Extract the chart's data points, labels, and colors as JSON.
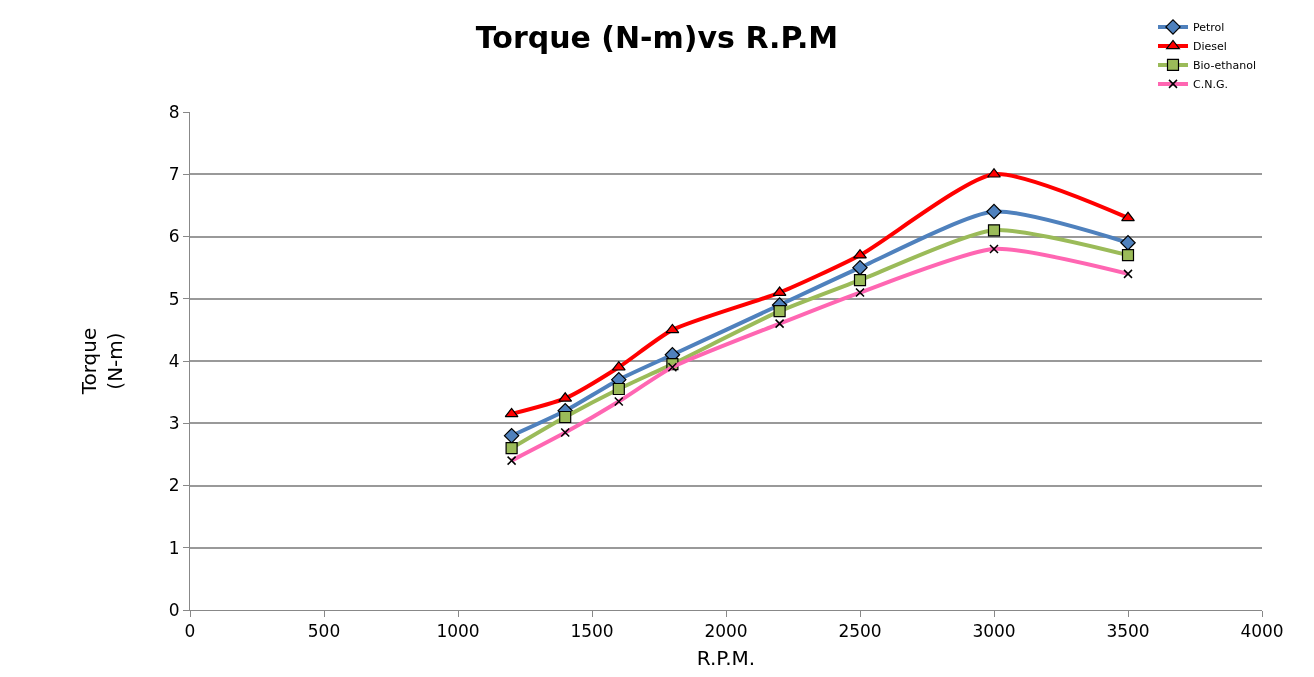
{
  "chart_data": {
    "type": "line",
    "title": "Torque (N-m)vs R.P.M",
    "xlabel": "R.P.M.",
    "ylabel": "Torque\n(N-m)",
    "x": [
      1200,
      1400,
      1600,
      1800,
      2200,
      2500,
      3000,
      3500
    ],
    "series": [
      {
        "name": "Petrol",
        "color": "#4f81bd",
        "marker": "diamond",
        "values": [
          2.8,
          3.2,
          3.7,
          4.1,
          4.9,
          5.5,
          6.4,
          5.9
        ]
      },
      {
        "name": "Diesel",
        "color": "#ff0000",
        "marker": "triangle",
        "values": [
          3.15,
          3.4,
          3.9,
          4.5,
          5.1,
          5.7,
          7.0,
          6.3
        ]
      },
      {
        "name": "Bio-ethanol",
        "color": "#9bbb59",
        "marker": "square",
        "values": [
          2.6,
          3.1,
          3.55,
          3.95,
          4.8,
          5.3,
          6.1,
          5.7
        ]
      },
      {
        "name": "C.N.G.",
        "color": "#ff66b2",
        "marker": "cross",
        "values": [
          2.4,
          2.85,
          3.35,
          3.9,
          4.6,
          5.1,
          5.8,
          5.4
        ]
      }
    ],
    "xlim": [
      0,
      4000
    ],
    "xticks": [
      0,
      500,
      1000,
      1500,
      2000,
      2500,
      3000,
      3500,
      4000
    ],
    "ylim": [
      0,
      8
    ],
    "yticks": [
      0,
      1,
      2,
      3,
      4,
      5,
      6,
      7,
      8
    ],
    "grid": "y",
    "legend": "top right",
    "line_style": "solid"
  }
}
